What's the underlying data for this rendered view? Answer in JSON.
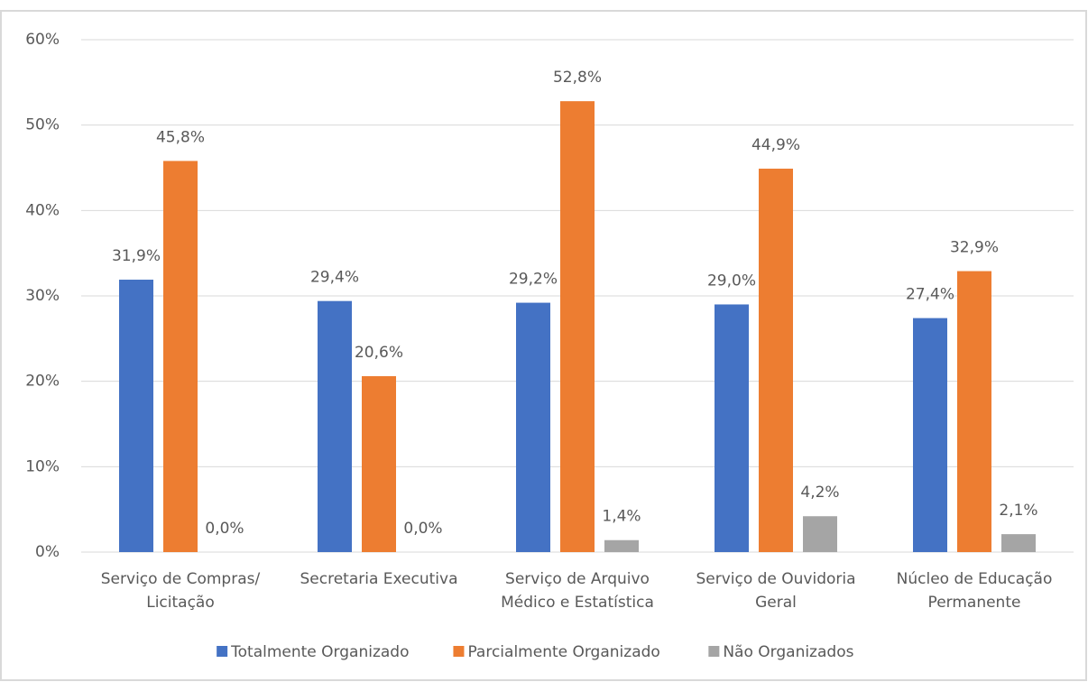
{
  "chart_data": {
    "type": "bar",
    "categories": [
      "Serviço de Compras/\nLicitação",
      "Secretaria Executiva",
      "Serviço de Arquivo\nMédico e Estatística",
      "Serviço de Ouvidoria\nGeral",
      "Núcleo de Educação\nPermanente"
    ],
    "series": [
      {
        "name": "Totalmente Organizado",
        "color": "#4472c4",
        "values": [
          31.9,
          29.4,
          29.2,
          29.0,
          27.4
        ],
        "value_labels": [
          "31,9%",
          "29,4%",
          "29,2%",
          "29,0%",
          "27,4%"
        ]
      },
      {
        "name": "Parcialmente Organizado",
        "color": "#ed7d31",
        "values": [
          45.8,
          20.6,
          52.8,
          44.9,
          32.9
        ],
        "value_labels": [
          "45,8%",
          "20,6%",
          "52,8%",
          "44,9%",
          "32,9%"
        ]
      },
      {
        "name": "Não Organizados",
        "color": "#a5a5a5",
        "values": [
          0.0,
          0.0,
          1.4,
          4.2,
          2.1
        ],
        "value_labels": [
          "0,0%",
          "0,0%",
          "1,4%",
          "4,2%",
          "2,1%"
        ]
      }
    ],
    "ylim": [
      0,
      60
    ],
    "yticks": [
      {
        "value": 0,
        "label": "0%"
      },
      {
        "value": 10,
        "label": "10%"
      },
      {
        "value": 20,
        "label": "20%"
      },
      {
        "value": 30,
        "label": "30%"
      },
      {
        "value": 40,
        "label": "40%"
      },
      {
        "value": 50,
        "label": "50%"
      },
      {
        "value": 60,
        "label": "60%"
      }
    ],
    "grid": true,
    "legend": "bottom"
  }
}
